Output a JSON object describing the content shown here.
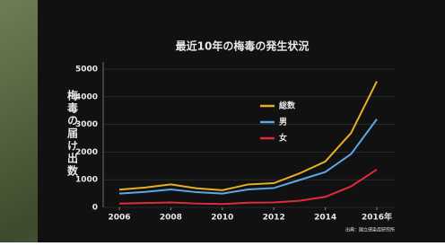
{
  "chart_data": {
    "type": "line",
    "title": "最近10年の梅毒の発生状況",
    "y_label": "梅毒の届け出数",
    "source": "出典：国立感染症研究所",
    "x": [
      2006,
      2007,
      2008,
      2009,
      2010,
      2011,
      2012,
      2013,
      2014,
      2015,
      2016
    ],
    "series": [
      {
        "name": "総数",
        "color": "#e8b020",
        "values": [
          640,
          720,
          830,
          690,
          620,
          830,
          875,
          1230,
          1660,
          2690,
          4560
        ]
      },
      {
        "name": "男",
        "color": "#5aa8e8",
        "values": [
          500,
          560,
          650,
          550,
          500,
          650,
          700,
          990,
          1280,
          1930,
          3190
        ]
      },
      {
        "name": "女",
        "color": "#e02a3a",
        "values": [
          140,
          160,
          180,
          140,
          120,
          170,
          180,
          240,
          380,
          760,
          1370
        ]
      }
    ],
    "xlim": [
      2006,
      2016
    ],
    "xticks": [
      2006,
      2008,
      2010,
      2012,
      2014,
      {
        "value": 2016,
        "label": "2016年"
      }
    ],
    "ylim": [
      0,
      5000
    ],
    "yticks": [
      0,
      1000,
      2000,
      3000,
      4000,
      5000
    ],
    "grid": true
  }
}
